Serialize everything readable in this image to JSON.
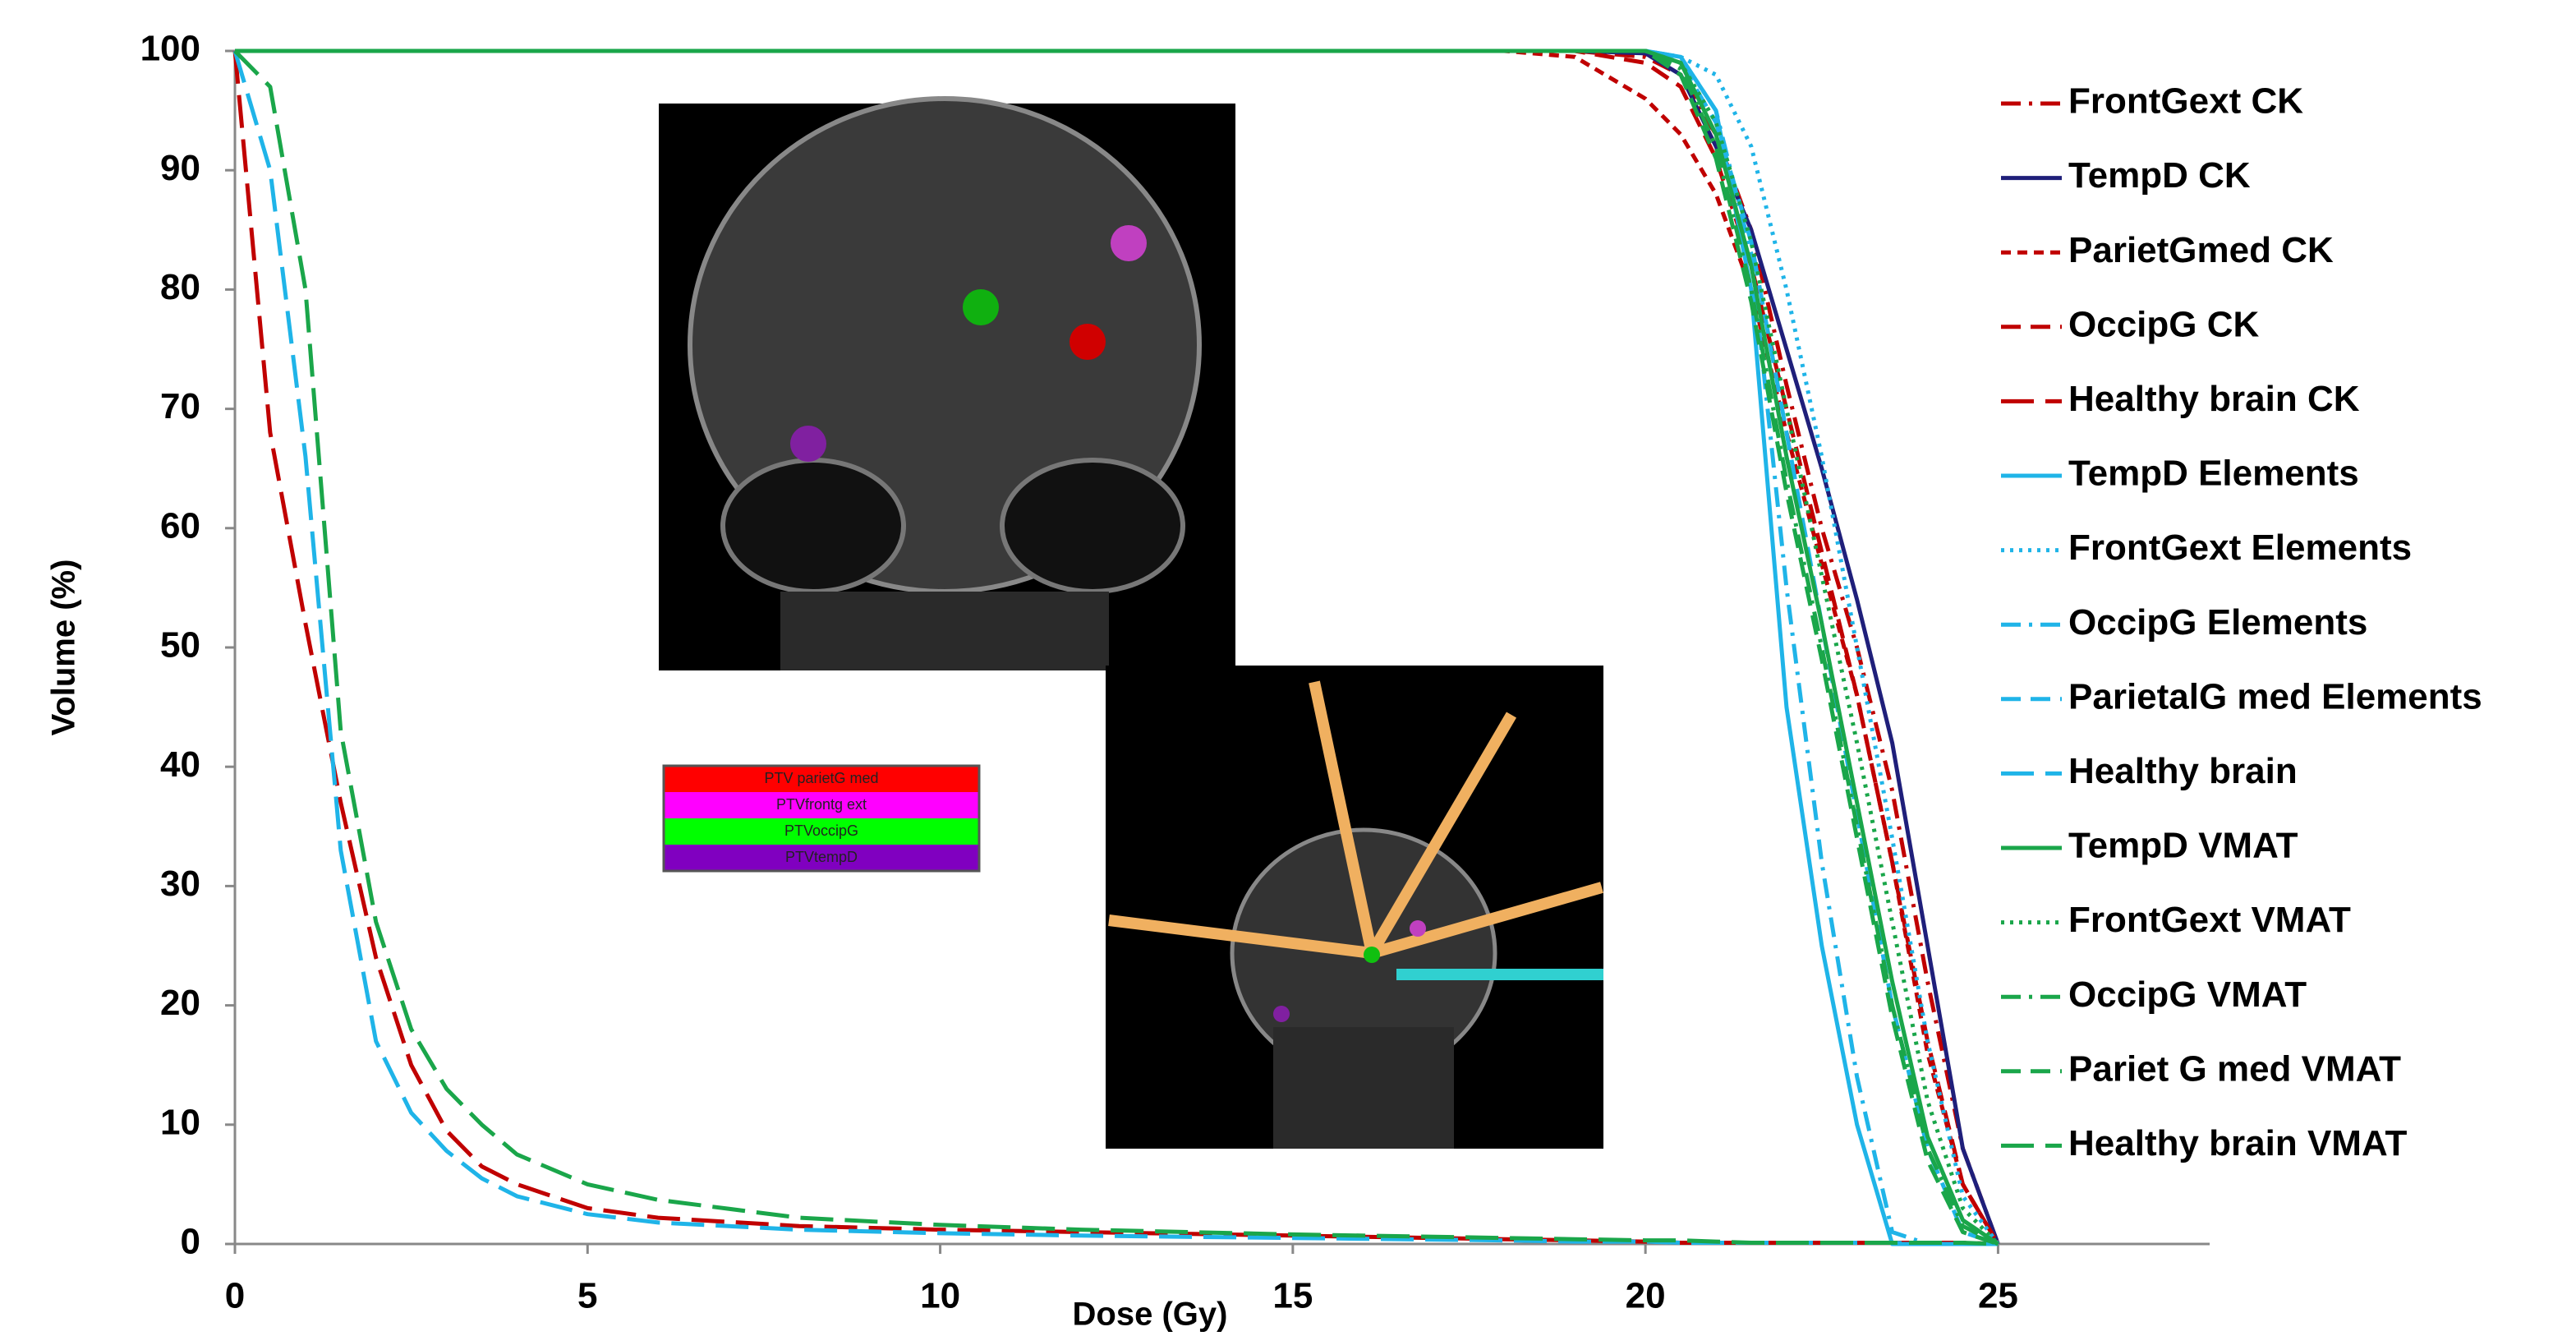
{
  "chart_data": {
    "type": "line",
    "x_label": "Dose (Gy)",
    "y_label": "Volume (%)",
    "xlim": [
      0,
      28
    ],
    "xticks": [
      0,
      5,
      10,
      15,
      20,
      25
    ],
    "ylim": [
      0,
      100
    ],
    "yticks": [
      0,
      10,
      20,
      30,
      40,
      50,
      60,
      70,
      80,
      90,
      100
    ],
    "grid": false,
    "legend": "right",
    "inset_labels": [
      "PTV parietG med",
      "PTVfrontg ext",
      "PTVoccipG",
      "PTVtempD"
    ],
    "x": [
      0,
      0.5,
      1,
      1.5,
      2,
      2.5,
      3,
      3.5,
      4,
      5,
      6,
      8,
      10,
      12,
      15,
      18,
      19,
      20,
      20.5,
      21,
      21.5,
      22,
      22.5,
      23,
      23.5,
      24,
      24.5,
      25
    ],
    "series": [
      {
        "name": "FrontGext CK",
        "color": "#c00000",
        "line_style": "dash-dot",
        "values": [
          100,
          100,
          100,
          100,
          100,
          100,
          100,
          100,
          100,
          100,
          100,
          100,
          100,
          100,
          100,
          100,
          100,
          99.5,
          98,
          93,
          85,
          72,
          60,
          50,
          38,
          22,
          8,
          0
        ]
      },
      {
        "name": "TempD CK",
        "color": "#1f1f7a",
        "line_style": "solid",
        "values": [
          100,
          100,
          100,
          100,
          100,
          100,
          100,
          100,
          100,
          100,
          100,
          100,
          100,
          100,
          100,
          100,
          100,
          99.8,
          98,
          92,
          85,
          75,
          65,
          54,
          42,
          25,
          8,
          0
        ]
      },
      {
        "name": "ParietGmed CK",
        "color": "#c00000",
        "line_style": "short-dash",
        "values": [
          100,
          100,
          100,
          100,
          100,
          100,
          100,
          100,
          100,
          100,
          100,
          100,
          100,
          100,
          100,
          100,
          99.5,
          96,
          93,
          88,
          80,
          68,
          57,
          46,
          32,
          16,
          5,
          0
        ]
      },
      {
        "name": "OccipG CK",
        "color": "#c00000",
        "line_style": "dash",
        "values": [
          100,
          100,
          100,
          100,
          100,
          100,
          100,
          100,
          100,
          100,
          100,
          100,
          100,
          100,
          100,
          100,
          100,
          99,
          97,
          91,
          82,
          70,
          58,
          46,
          32,
          17,
          5,
          0
        ]
      },
      {
        "name": "Healthy brain CK",
        "color": "#c00000",
        "line_style": "long-dash",
        "values": [
          100,
          68,
          52,
          37,
          24,
          15,
          9.5,
          6.5,
          5,
          3,
          2.2,
          1.5,
          1.2,
          1,
          0.7,
          0.4,
          0.3,
          0.2,
          0.1,
          0.1,
          0.1,
          0.1,
          0.1,
          0.1,
          0.1,
          0.1,
          0.1,
          0
        ]
      },
      {
        "name": "TempD Elements",
        "color": "#1fb4e8",
        "line_style": "solid",
        "values": [
          100,
          100,
          100,
          100,
          100,
          100,
          100,
          100,
          100,
          100,
          100,
          100,
          100,
          100,
          100,
          100,
          100,
          100,
          99.5,
          95,
          80,
          45,
          25,
          10,
          0,
          0,
          0,
          0
        ]
      },
      {
        "name": "FrontGext Elements",
        "color": "#1fb4e8",
        "line_style": "dot",
        "values": [
          100,
          100,
          100,
          100,
          100,
          100,
          100,
          100,
          100,
          100,
          100,
          100,
          100,
          100,
          100,
          100,
          100,
          100,
          99.5,
          98,
          92,
          80,
          66,
          50,
          34,
          17,
          4,
          0
        ]
      },
      {
        "name": "OccipG Elements",
        "color": "#1fb4e8",
        "line_style": "dash-dot",
        "values": [
          100,
          100,
          100,
          100,
          100,
          100,
          100,
          100,
          100,
          100,
          100,
          100,
          100,
          100,
          100,
          100,
          100,
          100,
          99.5,
          95,
          83,
          55,
          32,
          14,
          1,
          0,
          0,
          0
        ]
      },
      {
        "name": "ParietalG med Elements",
        "color": "#1fb4e8",
        "line_style": "dash",
        "values": [
          100,
          100,
          100,
          100,
          100,
          100,
          100,
          100,
          100,
          100,
          100,
          100,
          100,
          100,
          100,
          100,
          100,
          100,
          99,
          94,
          84,
          68,
          52,
          36,
          20,
          8,
          1,
          0
        ]
      },
      {
        "name": "Healthy brain",
        "color": "#1fb4e8",
        "line_style": "long-dash",
        "values": [
          100,
          90,
          66,
          33,
          17,
          11,
          7.8,
          5.5,
          4,
          2.5,
          1.8,
          1.2,
          0.9,
          0.7,
          0.5,
          0.3,
          0.2,
          0.2,
          0.1,
          0.1,
          0.1,
          0.1,
          0.1,
          0.1,
          0.1,
          0,
          0,
          0
        ]
      },
      {
        "name": "TempD VMAT",
        "color": "#1aa64a",
        "line_style": "solid",
        "values": [
          100,
          100,
          100,
          100,
          100,
          100,
          100,
          100,
          100,
          100,
          100,
          100,
          100,
          100,
          100,
          100,
          100,
          100,
          99,
          93,
          82,
          66,
          52,
          37,
          22,
          9,
          2,
          0
        ]
      },
      {
        "name": "FrontGext VMAT",
        "color": "#1aa64a",
        "line_style": "dot",
        "values": [
          100,
          100,
          100,
          100,
          100,
          100,
          100,
          100,
          100,
          100,
          100,
          100,
          100,
          100,
          100,
          100,
          100,
          100,
          99,
          94,
          84,
          70,
          56,
          42,
          27,
          12,
          3,
          0
        ]
      },
      {
        "name": "OccipG VMAT",
        "color": "#1aa64a",
        "line_style": "dash-dot",
        "values": [
          100,
          100,
          100,
          100,
          100,
          100,
          100,
          100,
          100,
          100,
          100,
          100,
          100,
          100,
          100,
          100,
          100,
          100,
          98.5,
          92,
          80,
          64,
          50,
          35,
          20,
          8,
          1.5,
          0
        ]
      },
      {
        "name": "Pariet G med VMAT",
        "color": "#1aa64a",
        "line_style": "dash",
        "values": [
          100,
          100,
          100,
          100,
          100,
          100,
          100,
          100,
          100,
          100,
          100,
          100,
          100,
          100,
          100,
          100,
          100,
          100,
          98,
          91,
          79,
          63,
          49,
          34,
          19,
          7,
          1,
          0
        ]
      },
      {
        "name": "Healthy brain VMAT",
        "color": "#1aa64a",
        "line_style": "long-dash",
        "values": [
          100,
          97,
          80,
          43,
          27,
          18,
          13,
          10,
          7.5,
          5,
          3.7,
          2.2,
          1.6,
          1.2,
          0.8,
          0.5,
          0.4,
          0.3,
          0.3,
          0.2,
          0.1,
          0.1,
          0.1,
          0.1,
          0.1,
          0.1,
          0.1,
          0
        ]
      }
    ]
  }
}
